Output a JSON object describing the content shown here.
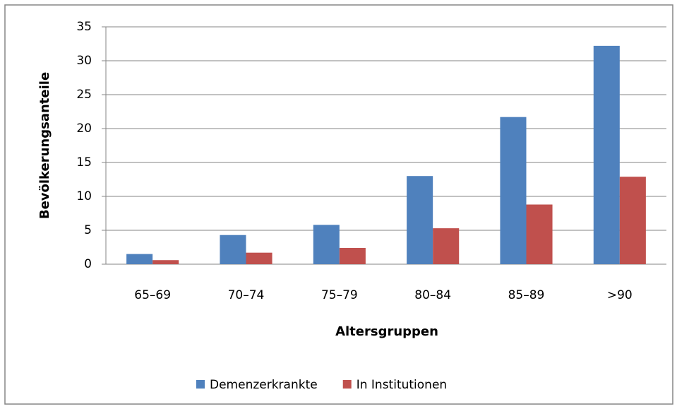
{
  "chart_data": {
    "type": "bar",
    "x_label": "Altersgruppen",
    "y_label": "Bevölkerungsanteile",
    "categories": [
      "65–69",
      "70–74",
      "75–79",
      "80–84",
      "85–89",
      ">90"
    ],
    "series": [
      {
        "name": "Demenzerkrankte",
        "color": "#4f81bd",
        "values": [
          1.5,
          4.3,
          5.8,
          13.0,
          21.7,
          32.2
        ]
      },
      {
        "name": "In Institutionen",
        "color": "#c0504d",
        "values": [
          0.6,
          1.7,
          2.4,
          5.3,
          8.8,
          12.9
        ]
      }
    ],
    "ylim": [
      0,
      35
    ],
    "yticks": [
      0,
      5,
      10,
      15,
      20,
      25,
      30,
      35
    ],
    "grid": true,
    "legend": "bottom"
  }
}
